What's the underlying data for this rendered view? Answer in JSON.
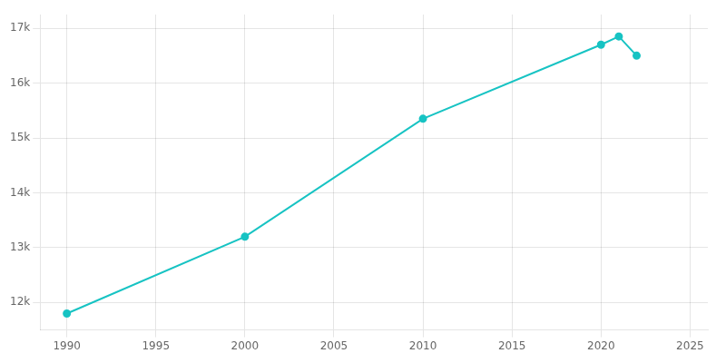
{
  "chart_data": {
    "type": "line",
    "x": [
      1990,
      2000,
      2010,
      2020,
      2021,
      2022
    ],
    "values": [
      11800,
      13200,
      15350,
      16700,
      16850,
      16500
    ],
    "color": "#17c3c3",
    "marker": "circle",
    "xlim": [
      1988.5,
      2026
    ],
    "ylim": [
      11500,
      17250
    ],
    "xticks": [
      1990,
      1995,
      2000,
      2005,
      2010,
      2015,
      2020,
      2025
    ],
    "yticks": [
      {
        "value": 12000,
        "label": "12k"
      },
      {
        "value": 13000,
        "label": "13k"
      },
      {
        "value": 14000,
        "label": "14k"
      },
      {
        "value": 15000,
        "label": "15k"
      },
      {
        "value": 16000,
        "label": "16k"
      },
      {
        "value": 17000,
        "label": "17k"
      }
    ],
    "grid": true
  }
}
